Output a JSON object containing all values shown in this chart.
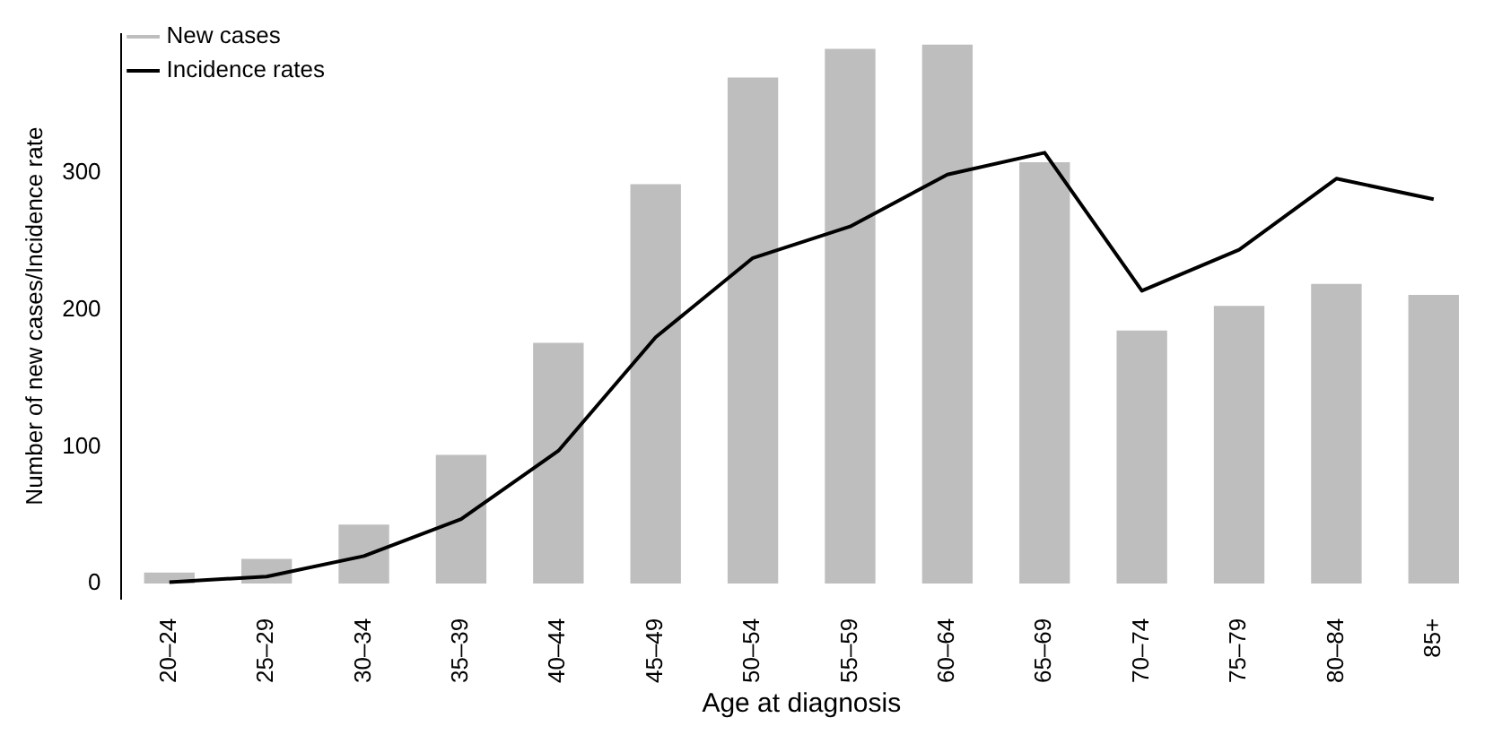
{
  "chart_data": {
    "type": "bar",
    "xlabel": "Age at diagnosis",
    "ylabel": "Number of new cases/Incidence rate",
    "categories": [
      "20–24",
      "25–29",
      "30–34",
      "35–39",
      "40–44",
      "45–49",
      "50–54",
      "55–59",
      "60–64",
      "65–69",
      "70–74",
      "75–79",
      "80–84",
      "85+"
    ],
    "series": [
      {
        "name": "New cases",
        "color": "#bebebe",
        "values": [
          8,
          18,
          43,
          94,
          176,
          292,
          370,
          391,
          394,
          308,
          185,
          203,
          219,
          211
        ]
      },
      {
        "name": "Incidence rates",
        "type": "line",
        "color": "#000000",
        "values": [
          1,
          5,
          20,
          47,
          97,
          180,
          238,
          261,
          299,
          315,
          214,
          244,
          296,
          281
        ]
      }
    ],
    "ylim": [
      -11,
      402
    ],
    "yticks": [
      0,
      100,
      200,
      300
    ],
    "grid": false,
    "legend": "top left",
    "marker": "none",
    "line_style": "solid"
  }
}
